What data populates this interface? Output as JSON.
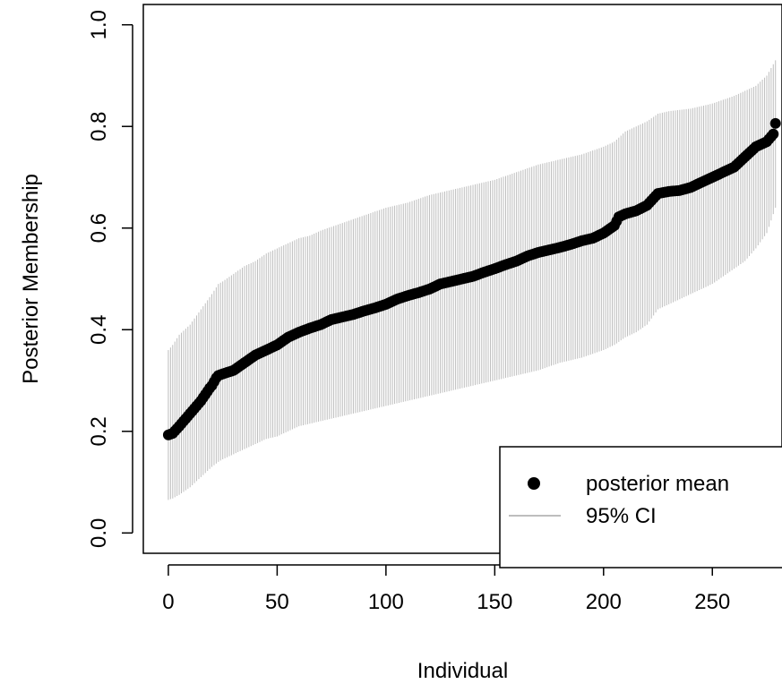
{
  "chart_data": {
    "type": "scatter",
    "title": "",
    "xlabel": "Individual",
    "ylabel": "Posterior Membership",
    "xlim": [
      -11.5,
      282
    ],
    "ylim": [
      -0.04,
      1.04
    ],
    "xticks": [
      0,
      50,
      100,
      150,
      200,
      250
    ],
    "xtick_labels": [
      "0",
      "50",
      "100",
      "150",
      "200",
      "250"
    ],
    "yticks": [
      0.0,
      0.2,
      0.4,
      0.6,
      0.8,
      1.0
    ],
    "ytick_labels": [
      "0.0",
      "0.2",
      "0.4",
      "0.6",
      "0.8",
      "1.0"
    ],
    "grid": false,
    "legend": {
      "position": "bottom-right",
      "entries": [
        {
          "label": "posterior mean",
          "marker": "filled-circle",
          "color": "#000000"
        },
        {
          "label": "95% CI",
          "marker": "line",
          "color": "#bebebe"
        }
      ]
    },
    "n_points": 280,
    "series": [
      {
        "name": "posterior mean",
        "style": "points",
        "color": "#000000",
        "x": [
          0,
          2,
          5,
          10,
          15,
          19,
          20,
          22,
          23,
          25,
          30,
          35,
          40,
          45,
          50,
          55,
          60,
          65,
          70,
          75,
          80,
          85,
          90,
          95,
          100,
          105,
          110,
          115,
          120,
          125,
          130,
          135,
          140,
          145,
          150,
          155,
          160,
          165,
          170,
          175,
          180,
          185,
          190,
          195,
          200,
          205,
          207,
          210,
          215,
          220,
          225,
          230,
          235,
          240,
          245,
          250,
          255,
          260,
          265,
          270,
          275,
          278,
          279
        ],
        "y": [
          0.193,
          0.196,
          0.21,
          0.235,
          0.26,
          0.285,
          0.29,
          0.305,
          0.31,
          0.313,
          0.32,
          0.335,
          0.35,
          0.36,
          0.37,
          0.385,
          0.395,
          0.403,
          0.41,
          0.42,
          0.425,
          0.43,
          0.437,
          0.443,
          0.45,
          0.46,
          0.467,
          0.473,
          0.48,
          0.49,
          0.495,
          0.5,
          0.505,
          0.513,
          0.52,
          0.528,
          0.535,
          0.545,
          0.552,
          0.557,
          0.562,
          0.568,
          0.575,
          0.58,
          0.59,
          0.605,
          0.622,
          0.628,
          0.634,
          0.645,
          0.668,
          0.672,
          0.674,
          0.68,
          0.69,
          0.7,
          0.71,
          0.72,
          0.74,
          0.76,
          0.77,
          0.785,
          0.806
        ]
      },
      {
        "name": "95% CI",
        "style": "vertical-interval",
        "color": "#bebebe",
        "x": [
          0,
          2,
          5,
          10,
          15,
          20,
          23,
          25,
          30,
          35,
          40,
          45,
          50,
          55,
          60,
          65,
          70,
          80,
          90,
          100,
          110,
          120,
          130,
          140,
          150,
          160,
          170,
          180,
          190,
          200,
          205,
          210,
          215,
          220,
          225,
          230,
          240,
          250,
          260,
          265,
          270,
          275,
          279
        ],
        "lower": [
          0.065,
          0.068,
          0.075,
          0.09,
          0.11,
          0.13,
          0.14,
          0.145,
          0.155,
          0.165,
          0.175,
          0.185,
          0.19,
          0.2,
          0.21,
          0.215,
          0.22,
          0.23,
          0.24,
          0.25,
          0.26,
          0.27,
          0.28,
          0.29,
          0.3,
          0.31,
          0.32,
          0.335,
          0.345,
          0.36,
          0.37,
          0.385,
          0.395,
          0.41,
          0.44,
          0.45,
          0.47,
          0.49,
          0.52,
          0.535,
          0.56,
          0.59,
          0.64
        ],
        "upper": [
          0.36,
          0.37,
          0.39,
          0.41,
          0.44,
          0.47,
          0.49,
          0.495,
          0.51,
          0.525,
          0.535,
          0.55,
          0.56,
          0.57,
          0.58,
          0.585,
          0.595,
          0.61,
          0.625,
          0.64,
          0.65,
          0.665,
          0.675,
          0.685,
          0.695,
          0.71,
          0.725,
          0.735,
          0.745,
          0.76,
          0.77,
          0.79,
          0.8,
          0.81,
          0.825,
          0.83,
          0.835,
          0.845,
          0.86,
          0.87,
          0.88,
          0.9,
          0.93
        ]
      }
    ]
  }
}
